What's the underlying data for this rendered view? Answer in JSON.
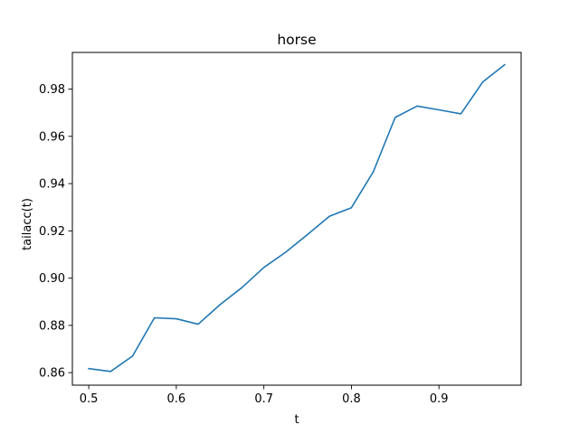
{
  "chart_data": {
    "type": "line",
    "title": "horse",
    "xlabel": "t",
    "ylabel": "tailacc(t)",
    "xlim": [
      0.4813,
      0.9938
    ],
    "ylim": [
      0.8547,
      0.9955
    ],
    "grid": false,
    "legend": "none",
    "x_ticks": [
      0.5,
      0.6,
      0.7,
      0.8,
      0.9
    ],
    "x_tick_labels": [
      "0.5",
      "0.6",
      "0.7",
      "0.8",
      "0.9"
    ],
    "y_ticks": [
      0.86,
      0.88,
      0.9,
      0.92,
      0.94,
      0.96,
      0.98
    ],
    "y_tick_labels": [
      "0.86",
      "0.88",
      "0.90",
      "0.92",
      "0.94",
      "0.96",
      "0.98"
    ],
    "series": [
      {
        "color": "#1f77b4",
        "x": [
          0.5,
          0.525,
          0.55,
          0.575,
          0.6,
          0.625,
          0.65,
          0.675,
          0.7,
          0.725,
          0.75,
          0.775,
          0.8,
          0.825,
          0.85,
          0.875,
          0.9,
          0.925,
          0.95,
          0.975
        ],
        "y": [
          0.8617,
          0.8605,
          0.867,
          0.8832,
          0.8828,
          0.8805,
          0.8888,
          0.896,
          0.9045,
          0.911,
          0.9185,
          0.9262,
          0.9298,
          0.945,
          0.968,
          0.9728,
          0.9712,
          0.9695,
          0.983,
          0.9903
        ]
      }
    ]
  }
}
